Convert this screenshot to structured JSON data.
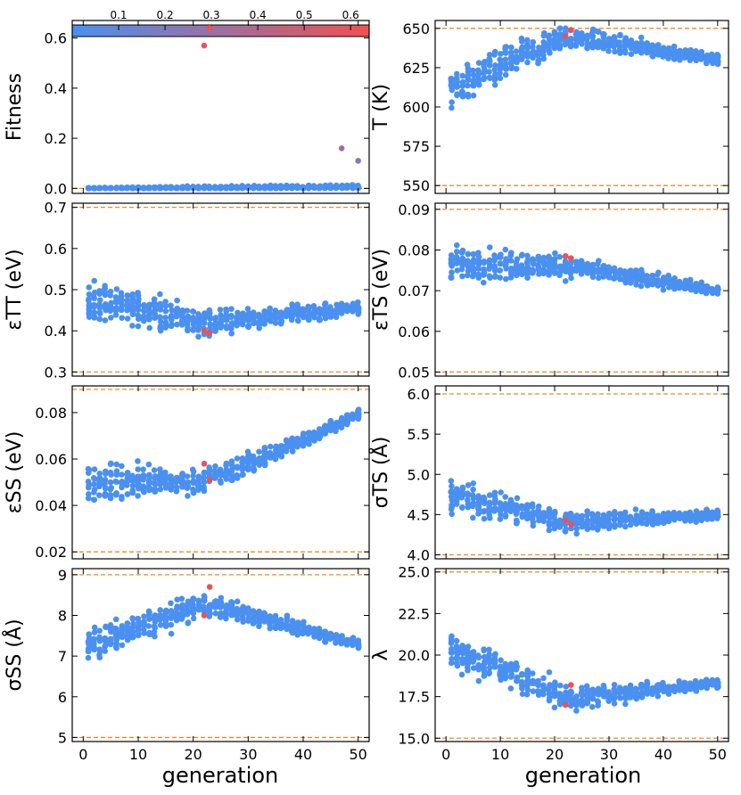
{
  "colorbar": {
    "ticks": [
      "0.1",
      "0.2",
      "0.3",
      "0.4",
      "0.5",
      "0.6"
    ],
    "values": [
      0.1,
      0.2,
      0.3,
      0.4,
      0.5,
      0.6
    ],
    "range": [
      0.0,
      0.64
    ],
    "colors": [
      "#4a90f0",
      "#f05050"
    ]
  },
  "colors": {
    "point_low": "#4a90f0",
    "point_high": "#f05050",
    "bound_line": "#f08a24"
  },
  "xaxis": {
    "label": "generation",
    "ticks": [
      "0",
      "10",
      "20",
      "30",
      "40",
      "50"
    ],
    "range": [
      -2,
      52
    ]
  },
  "chart_data": [
    {
      "type": "scatter",
      "id": "fitness",
      "ylabel": "Fitness",
      "ylim": [
        -0.02,
        0.67
      ],
      "yticks": [
        0.0,
        0.2,
        0.4,
        0.6
      ],
      "ytick_labels": [
        "0.0",
        "0.2",
        "0.4",
        "0.6"
      ],
      "bounds": [
        0.0
      ],
      "highlight": [
        {
          "x": 22,
          "y": 0.57,
          "f": 0.6
        },
        {
          "x": 23,
          "y": 0.64,
          "f": 0.64
        },
        {
          "x": 47,
          "y": 0.16,
          "f": 0.3
        },
        {
          "x": 50,
          "y": 0.11,
          "f": 0.2
        }
      ],
      "gen": {
        "base": [
          0.0,
          0.0
        ],
        "spread": [
          0.003,
          0.02
        ],
        "min": 0,
        "max": 0.04
      }
    },
    {
      "type": "scatter",
      "id": "temperature",
      "ylabel": "T (K)",
      "ylim": [
        545,
        655
      ],
      "yticks": [
        550,
        575,
        600,
        625,
        650
      ],
      "ytick_labels": [
        "550",
        "575",
        "600",
        "625",
        "650"
      ],
      "bounds": [
        550,
        650
      ],
      "highlight": [
        {
          "x": 22,
          "y": 645,
          "f": 0.6
        },
        {
          "x": 23,
          "y": 649,
          "f": 0.64
        }
      ],
      "gen": {
        "base": [
          610,
          645
        ],
        "mid": 645,
        "end": 630,
        "spread": [
          18,
          4
        ],
        "min": 580,
        "max": 650
      }
    },
    {
      "type": "scatter",
      "id": "eps_tt",
      "ylabel": "εTT (eV)",
      "ylim": [
        0.29,
        0.71
      ],
      "yticks": [
        0.3,
        0.4,
        0.5,
        0.6,
        0.7
      ],
      "ytick_labels": [
        "0.3",
        "0.4",
        "0.5",
        "0.6",
        "0.7"
      ],
      "bounds": [
        0.3,
        0.7
      ],
      "highlight": [
        {
          "x": 22,
          "y": 0.4,
          "f": 0.6
        },
        {
          "x": 23,
          "y": 0.395,
          "f": 0.64
        }
      ],
      "gen": {
        "base": [
          0.48,
          0.46
        ],
        "mid": 0.42,
        "end": 0.455,
        "spread": [
          0.07,
          0.02
        ],
        "min": 0.34,
        "max": 0.64
      }
    },
    {
      "type": "scatter",
      "id": "eps_ts",
      "ylabel": "εTS (eV)",
      "ylim": [
        0.049,
        0.0915
      ],
      "yticks": [
        0.05,
        0.06,
        0.07,
        0.08,
        0.09
      ],
      "ytick_labels": [
        "0.05",
        "0.06",
        "0.07",
        "0.08",
        "0.09"
      ],
      "bounds": [
        0.05,
        0.09
      ],
      "highlight": [
        {
          "x": 22,
          "y": 0.0785,
          "f": 0.6
        },
        {
          "x": 23,
          "y": 0.078,
          "f": 0.64
        }
      ],
      "gen": {
        "base": [
          0.077,
          0.07
        ],
        "mid": 0.076,
        "end": 0.07,
        "spread": [
          0.006,
          0.0015
        ],
        "min": 0.059,
        "max": 0.09
      }
    },
    {
      "type": "scatter",
      "id": "eps_ss",
      "ylabel": "εSS (eV)",
      "ylim": [
        0.017,
        0.0915
      ],
      "yticks": [
        0.02,
        0.04,
        0.06,
        0.08
      ],
      "ytick_labels": [
        "0.02",
        "0.04",
        "0.06",
        "0.08"
      ],
      "bounds": [
        0.02,
        0.09
      ],
      "highlight": [
        {
          "x": 22,
          "y": 0.058,
          "f": 0.6
        },
        {
          "x": 23,
          "y": 0.051,
          "f": 0.64
        }
      ],
      "gen": {
        "base": [
          0.05,
          0.079
        ],
        "mid": 0.05,
        "end": 0.079,
        "spread": [
          0.012,
          0.003
        ],
        "min": 0.02,
        "max": 0.09
      }
    },
    {
      "type": "scatter",
      "id": "sigma_ts",
      "ylabel": "σTS (Å)",
      "ylim": [
        3.95,
        6.1
      ],
      "yticks": [
        4.0,
        4.5,
        5.0,
        5.5,
        6.0
      ],
      "ytick_labels": [
        "4.0",
        "4.5",
        "5.0",
        "5.5",
        "6.0"
      ],
      "bounds": [
        4.0,
        6.0
      ],
      "highlight": [
        {
          "x": 22,
          "y": 4.43,
          "f": 0.6
        },
        {
          "x": 23,
          "y": 4.38,
          "f": 0.64
        }
      ],
      "gen": {
        "base": [
          4.75,
          4.5
        ],
        "mid": 4.4,
        "end": 4.5,
        "spread": [
          0.3,
          0.07
        ],
        "min": 4.0,
        "max": 5.45
      }
    },
    {
      "type": "scatter",
      "id": "sigma_ss",
      "ylabel": "σSS (Å)",
      "ylim": [
        4.9,
        9.15
      ],
      "yticks": [
        5,
        6,
        7,
        8,
        9
      ],
      "ytick_labels": [
        "5",
        "6",
        "7",
        "8",
        "9"
      ],
      "bounds": [
        5.0,
        9.0
      ],
      "highlight": [
        {
          "x": 22,
          "y": 8.0,
          "f": 0.6
        },
        {
          "x": 23,
          "y": 8.7,
          "f": 0.64
        }
      ],
      "gen": {
        "base": [
          7.2,
          7.3
        ],
        "mid": 8.3,
        "end": 7.3,
        "spread": [
          0.6,
          0.15
        ],
        "min": 5.8,
        "max": 9.0
      }
    },
    {
      "type": "scatter",
      "id": "lambda",
      "ylabel": "λ",
      "ylim": [
        14.8,
        25.2
      ],
      "yticks": [
        15.0,
        17.5,
        20.0,
        22.5,
        25.0
      ],
      "ytick_labels": [
        "15.0",
        "17.5",
        "20.0",
        "22.5",
        "25.0"
      ],
      "bounds": [
        15.0,
        25.0
      ],
      "highlight": [
        {
          "x": 22,
          "y": 17.0,
          "f": 0.6
        },
        {
          "x": 23,
          "y": 18.2,
          "f": 0.64
        }
      ],
      "gen": {
        "base": [
          20.5,
          18.3
        ],
        "mid": 17.4,
        "end": 18.3,
        "spread": [
          1.6,
          0.35
        ],
        "min": 15.0,
        "max": 24.8
      }
    }
  ]
}
